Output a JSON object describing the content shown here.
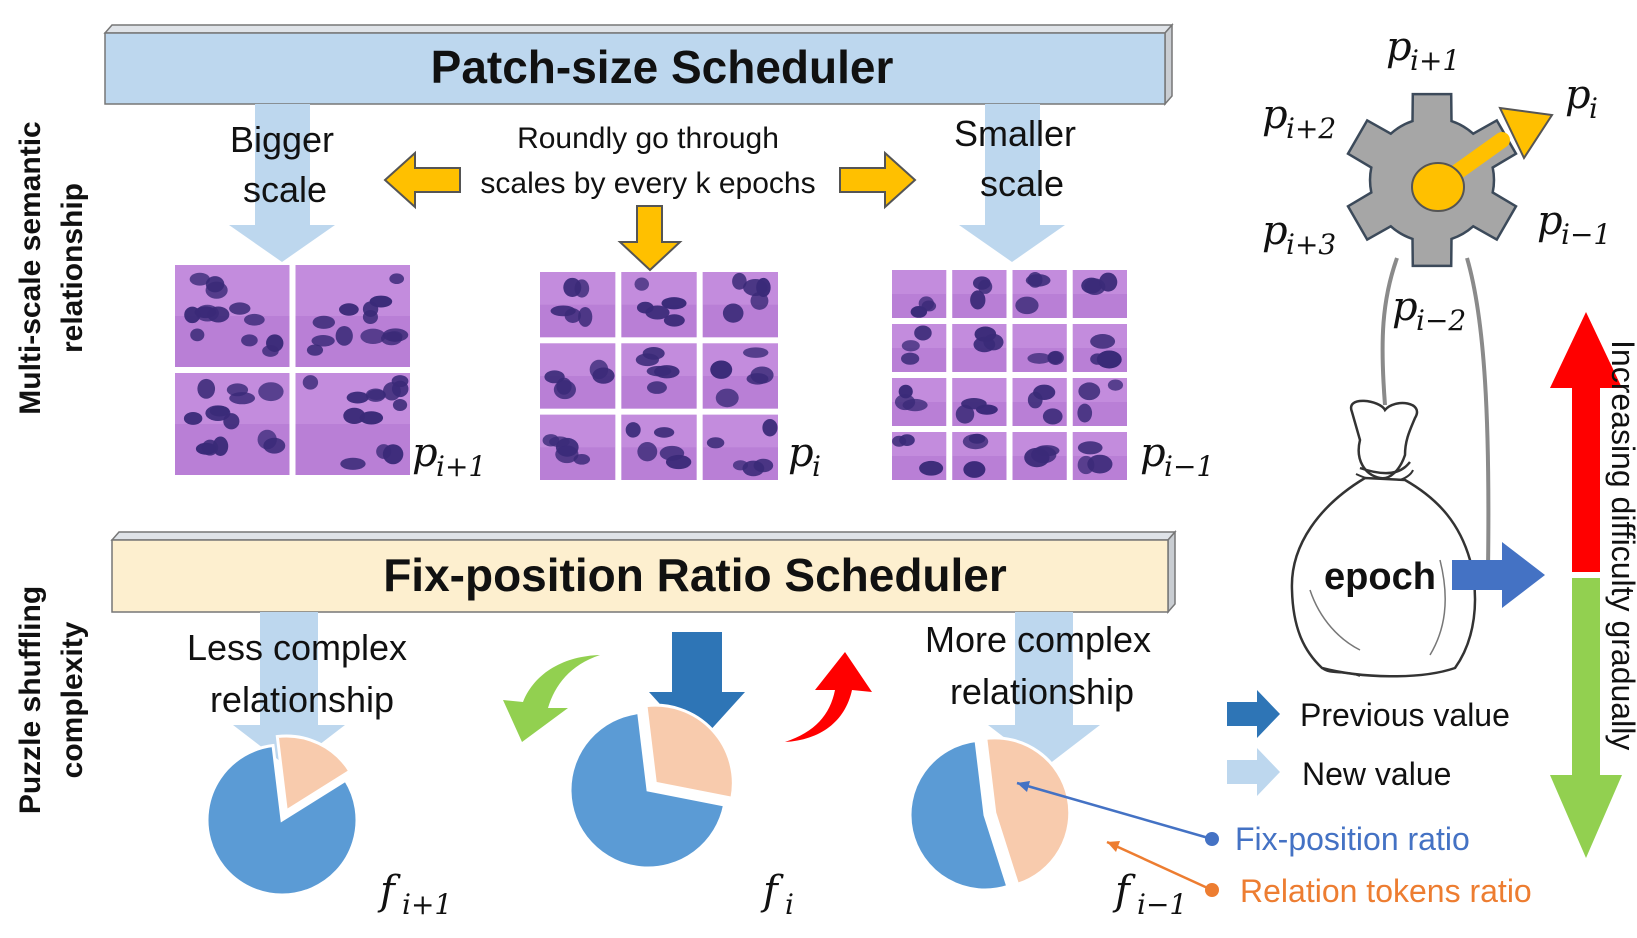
{
  "patch_scheduler": {
    "title": "Patch-size Scheduler",
    "bigger_scale": [
      "Bigger",
      "scale"
    ],
    "smaller_scale": [
      "Smaller",
      "scale"
    ],
    "roundly": [
      "Roundly go through",
      "scales by every k epochs"
    ],
    "grids": [
      {
        "rows": 2,
        "cols": 2,
        "base": "p",
        "sub": "i+1"
      },
      {
        "rows": 3,
        "cols": 3,
        "base": "p",
        "sub": "i"
      },
      {
        "rows": 4,
        "cols": 4,
        "base": "p",
        "sub": "i−1"
      }
    ]
  },
  "ratio_scheduler": {
    "title": "Fix-position Ratio Scheduler",
    "less_complex": [
      "Less complex",
      "relationship"
    ],
    "more_complex": [
      "More complex",
      "relationship"
    ],
    "pies": [
      {
        "base": "f",
        "sub": "i+1",
        "fix_position_ratio": 0.82
      },
      {
        "base": "f",
        "sub": "i",
        "fix_position_ratio": 0.7
      },
      {
        "base": "f",
        "sub": "i−1",
        "fix_position_ratio": 0.53
      }
    ]
  },
  "side_labels": {
    "top": [
      "Multi-scale semantic",
      "relationship"
    ],
    "bottom": [
      "Puzzle shuffling",
      "complexity"
    ]
  },
  "gear": {
    "labels": [
      {
        "base": "p",
        "sub": "i+1"
      },
      {
        "base": "p",
        "sub": "i+2"
      },
      {
        "base": "p",
        "sub": "i"
      },
      {
        "base": "p",
        "sub": "i+3"
      },
      {
        "base": "p",
        "sub": "i−1"
      },
      {
        "base": "p",
        "sub": "i−2"
      }
    ]
  },
  "epoch_label": "epoch",
  "difficulty_label": "Increasing difficulty gradually",
  "legend": {
    "previous": "Previous value",
    "new": "New value",
    "fix_ratio": "Fix-position ratio",
    "relation_ratio": "Relation tokens ratio"
  },
  "colors": {
    "banner_top": "#bdd7ee",
    "banner_bottom": "#fdefcf",
    "light_arrow": "#bdd7ee",
    "dark_arrow": "#2e75b6",
    "orange_arrow": "#ffc000",
    "pie_fix": "#5b9bd5",
    "pie_relation": "#f8cbad",
    "green": "#92d050",
    "red": "#ff0000",
    "fix_text": "#4472c4",
    "relation_text": "#ed7d31",
    "gear": "#a6a6a6",
    "tissue": "#b97fd6",
    "nucleus": "#3a2a78"
  }
}
